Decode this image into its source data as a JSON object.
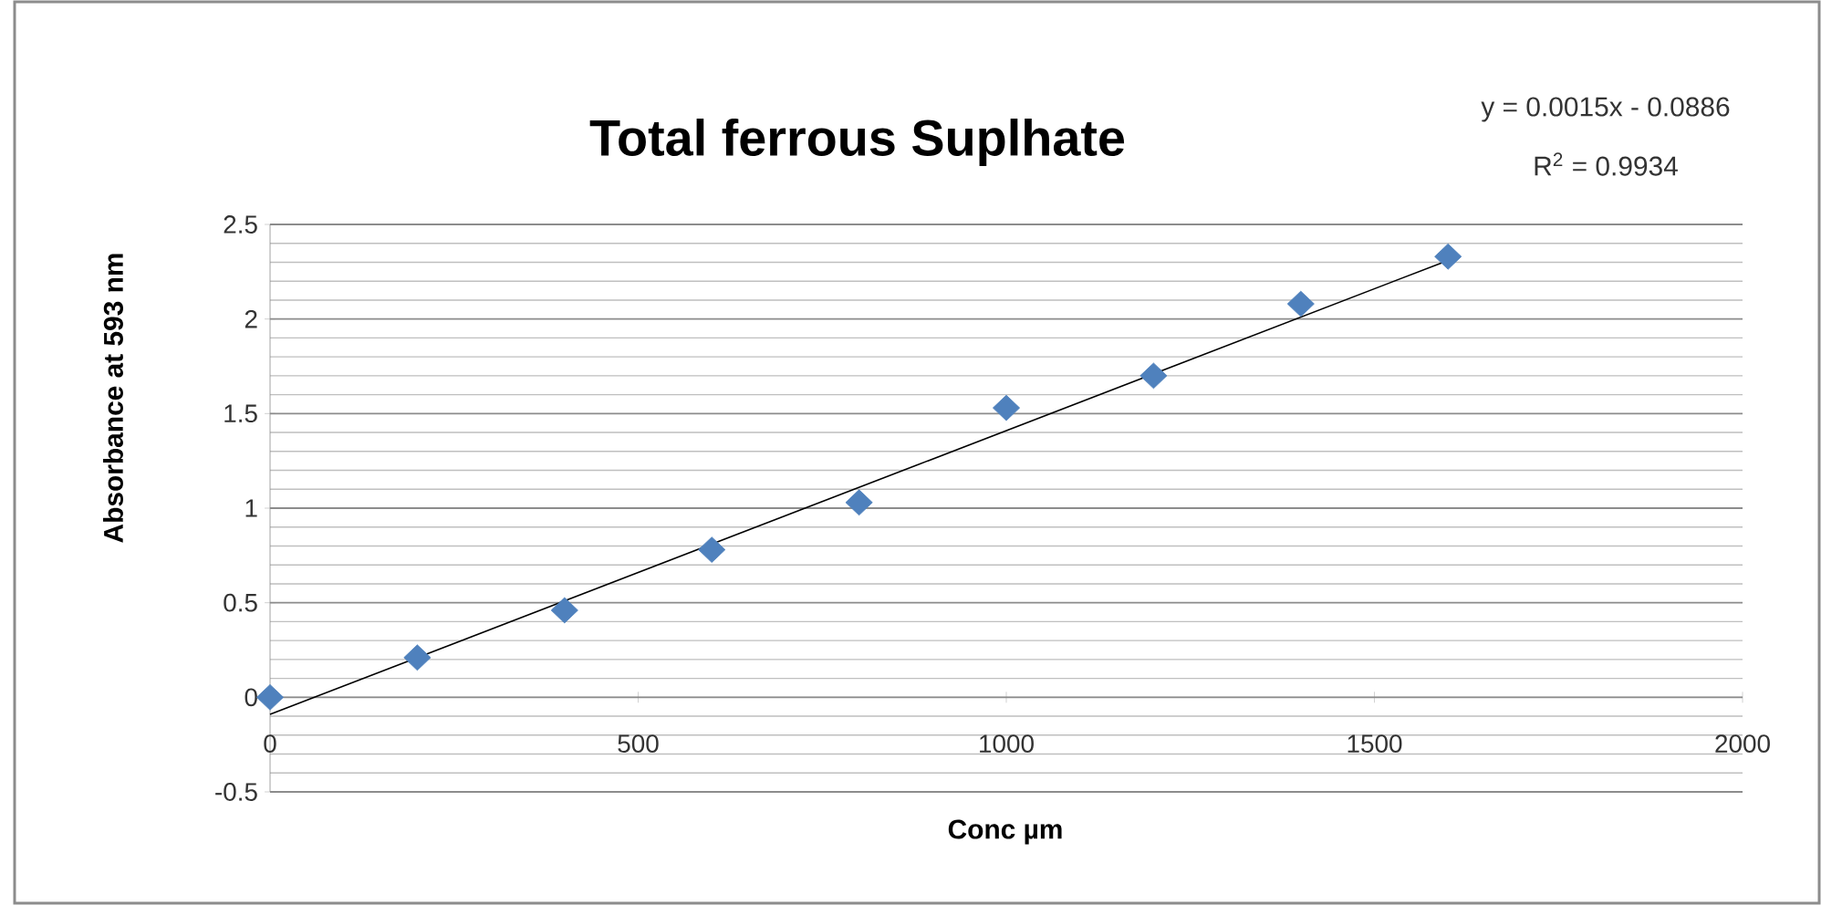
{
  "chart_data": {
    "type": "scatter",
    "title": "Total  ferrous Suplhate",
    "xlabel": "Conc µm",
    "ylabel": "Absorbance at 593 nm",
    "annotations": [
      "y = 0.0015x - 0.0886",
      "R$^{2}$ = 0.9934"
    ],
    "series": [
      {
        "color": "#4f81bd",
        "marker": "diamond",
        "x": [
          0,
          200,
          400,
          600,
          800,
          1000,
          1200,
          1400,
          1600
        ],
        "values": [
          0,
          0.21,
          0.46,
          0.78,
          1.03,
          1.53,
          1.7,
          2.08,
          2.33
        ]
      },
      {
        "type": "line",
        "color": "#000000",
        "marker": "none",
        "line_style": "solid",
        "x": [
          0,
          1600
        ],
        "values": [
          -0.09,
          2.31
        ]
      }
    ],
    "xlim": [
      0,
      2000
    ],
    "ylim": [
      -0.5,
      2.5
    ],
    "xticks": [
      0,
      500,
      1000,
      1500,
      2000
    ],
    "yticks": [
      -0.5,
      0,
      0.5,
      1,
      1.5,
      2,
      2.5
    ],
    "grid": "y"
  }
}
